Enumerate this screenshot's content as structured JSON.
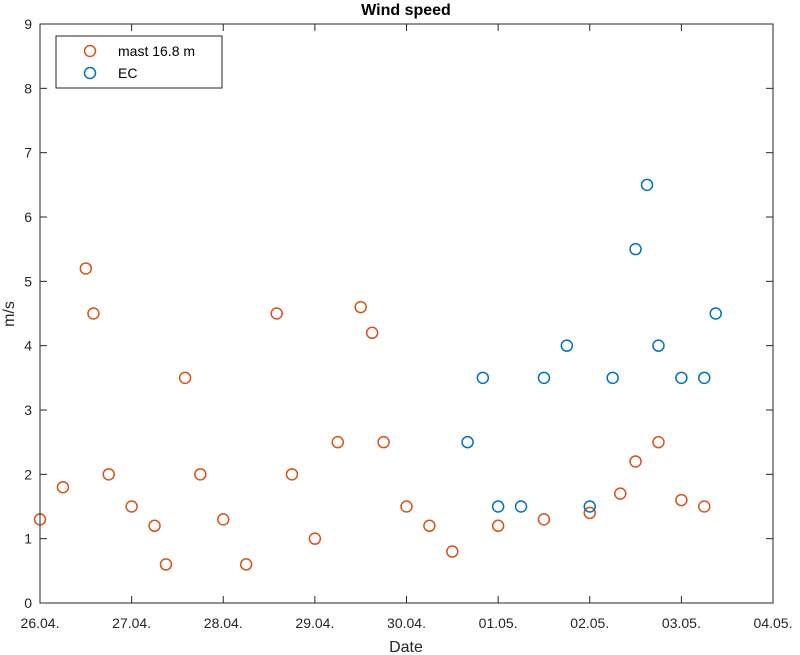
{
  "chart_data": {
    "type": "scatter",
    "title": "Wind speed",
    "xlabel": "Date",
    "ylabel": "m/s",
    "xlim": [
      "2024-04-26",
      "2024-05-04"
    ],
    "ylim": [
      0,
      9
    ],
    "x_tick_labels": [
      "26.04.",
      "27.04.",
      "28.04.",
      "29.04.",
      "30.04.",
      "01.05.",
      "02.05.",
      "03.05.",
      "04.05."
    ],
    "y_tick_labels": [
      "0",
      "1",
      "2",
      "3",
      "4",
      "5",
      "6",
      "7",
      "8",
      "9"
    ],
    "legend_position": "top-left",
    "series": [
      {
        "name": "mast 16.8 m",
        "color": "#D95319",
        "marker": "open-circle",
        "x": [
          "2024-04-26 00:00",
          "2024-04-26 06:00",
          "2024-04-26 12:00",
          "2024-04-26 14:00",
          "2024-04-26 18:00",
          "2024-04-27 00:00",
          "2024-04-27 06:00",
          "2024-04-27 09:00",
          "2024-04-27 14:00",
          "2024-04-27 18:00",
          "2024-04-28 00:00",
          "2024-04-28 06:00",
          "2024-04-28 14:00",
          "2024-04-28 18:00",
          "2024-04-29 00:00",
          "2024-04-29 06:00",
          "2024-04-29 12:00",
          "2024-04-29 15:00",
          "2024-04-29 18:00",
          "2024-04-30 00:00",
          "2024-04-30 06:00",
          "2024-04-30 12:00",
          "2024-05-01 00:00",
          "2024-05-01 12:00",
          "2024-05-02 00:00",
          "2024-05-02 08:00",
          "2024-05-02 12:00",
          "2024-05-02 18:00",
          "2024-05-03 00:00",
          "2024-05-03 06:00"
        ],
        "y": [
          1.3,
          1.8,
          5.2,
          4.5,
          2.0,
          1.5,
          1.2,
          0.6,
          3.5,
          2.0,
          1.3,
          0.6,
          4.5,
          2.0,
          1.0,
          2.5,
          4.6,
          4.2,
          2.5,
          1.5,
          1.2,
          0.8,
          1.2,
          1.3,
          1.4,
          1.7,
          2.2,
          2.5,
          1.6,
          1.5
        ]
      },
      {
        "name": "EC",
        "color": "#0072BD",
        "marker": "open-circle",
        "x": [
          "2024-04-30 16:00",
          "2024-04-30 20:00",
          "2024-05-01 00:00",
          "2024-05-01 06:00",
          "2024-05-01 12:00",
          "2024-05-01 18:00",
          "2024-05-02 00:00",
          "2024-05-02 06:00",
          "2024-05-02 12:00",
          "2024-05-02 15:00",
          "2024-05-02 18:00",
          "2024-05-03 00:00",
          "2024-05-03 06:00",
          "2024-05-03 09:00"
        ],
        "y": [
          2.5,
          3.5,
          1.5,
          1.5,
          3.5,
          4.0,
          1.5,
          3.5,
          5.5,
          6.5,
          4.0,
          3.5,
          3.5,
          4.5
        ]
      }
    ]
  }
}
